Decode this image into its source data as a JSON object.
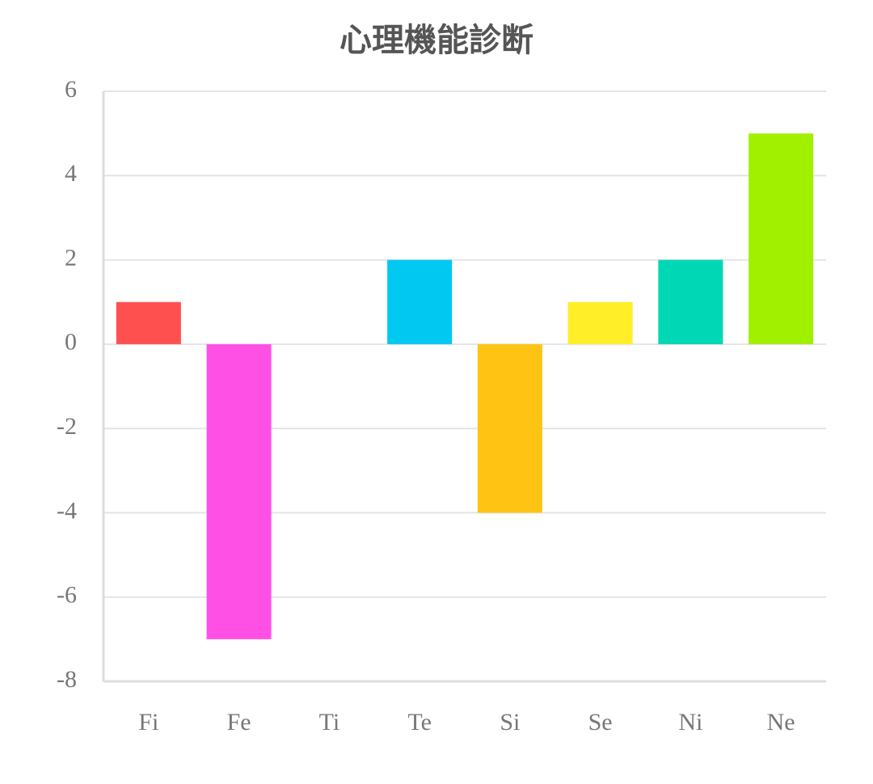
{
  "chart_data": {
    "type": "bar",
    "title": "心理機能診断",
    "categories": [
      "Fi",
      "Fe",
      "Ti",
      "Te",
      "Si",
      "Se",
      "Ni",
      "Ne"
    ],
    "values": [
      1,
      -7,
      0,
      2,
      -4,
      1,
      2,
      5
    ],
    "colors": [
      "#ff5050",
      "#ff50e6",
      null,
      "#00c8f0",
      "#ffc314",
      "#ffee28",
      "#00d7b4",
      "#a0f000"
    ],
    "ylim": [
      -8,
      6
    ],
    "yticks": [
      -8,
      -6,
      -4,
      -2,
      0,
      2,
      4,
      6
    ],
    "grid": true
  }
}
